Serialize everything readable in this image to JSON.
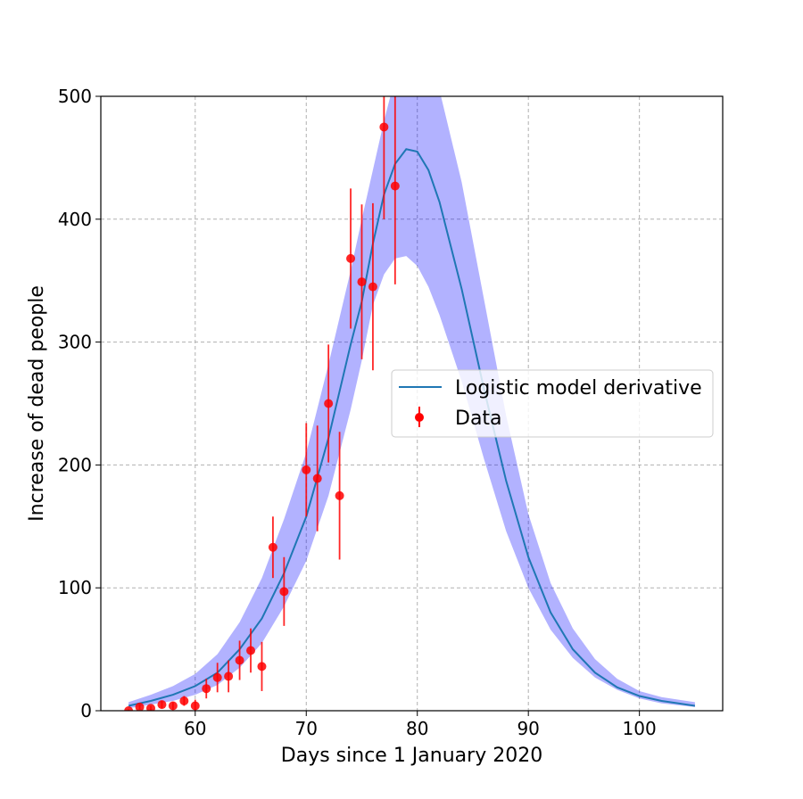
{
  "chart_data": {
    "type": "line",
    "title": "",
    "xlabel": "Days since 1 January 2020",
    "ylabel": "Increase of dead people",
    "xlim": [
      51.5,
      107.5
    ],
    "ylim": [
      0,
      500
    ],
    "xticks": [
      60,
      70,
      80,
      90,
      100
    ],
    "yticks": [
      0,
      100,
      200,
      300,
      400,
      500
    ],
    "grid": true,
    "legend_position": "center-right",
    "colors": {
      "model": "#1f77b4",
      "band": "#0000ff",
      "data": "#ff0000"
    },
    "series": [
      {
        "name": "Logistic model derivative",
        "kind": "line",
        "x": [
          54,
          56,
          58,
          60,
          62,
          64,
          66,
          68,
          70,
          72,
          74,
          75,
          76,
          77,
          78,
          79,
          80,
          81,
          82,
          84,
          86,
          88,
          90,
          92,
          94,
          96,
          98,
          100,
          102,
          105
        ],
        "y": [
          4,
          8,
          13,
          20,
          31,
          50,
          75,
          112,
          158,
          222,
          298,
          333,
          380,
          420,
          445,
          457,
          455,
          440,
          414,
          343,
          262,
          187,
          125,
          80,
          50,
          31,
          19,
          12,
          8,
          4
        ]
      },
      {
        "name": "",
        "kind": "band",
        "x": [
          54,
          56,
          58,
          60,
          62,
          64,
          66,
          68,
          70,
          72,
          74,
          75,
          76,
          77,
          78,
          79,
          80,
          81,
          82,
          84,
          86,
          88,
          90,
          92,
          94,
          96,
          98,
          100,
          102,
          105
        ],
        "lower": [
          2,
          5,
          8,
          13,
          21,
          35,
          55,
          85,
          122,
          175,
          245,
          285,
          330,
          355,
          368,
          370,
          362,
          345,
          322,
          268,
          205,
          146,
          100,
          66,
          43,
          27,
          17,
          10,
          6,
          3
        ],
        "upper": [
          7,
          13,
          20,
          30,
          46,
          72,
          108,
          156,
          210,
          282,
          358,
          400,
          440,
          480,
          515,
          535,
          540,
          530,
          505,
          430,
          335,
          240,
          160,
          104,
          67,
          42,
          26,
          16,
          11,
          7
        ]
      },
      {
        "name": "Data",
        "kind": "errorbar",
        "x": [
          54,
          55,
          56,
          57,
          58,
          59,
          60,
          61,
          62,
          63,
          64,
          65,
          66,
          67,
          68,
          70,
          71,
          72,
          73,
          74,
          75,
          76,
          77,
          78
        ],
        "y": [
          0,
          3,
          2,
          5,
          4,
          8,
          4,
          18,
          27,
          28,
          41,
          49,
          36,
          133,
          97,
          196,
          189,
          250,
          175,
          368,
          349,
          345,
          475,
          427
        ],
        "err": [
          1,
          2,
          2,
          3,
          3,
          4,
          5,
          8,
          12,
          13,
          16,
          18,
          20,
          25,
          28,
          38,
          43,
          48,
          52,
          57,
          63,
          68,
          75,
          80
        ]
      }
    ]
  }
}
